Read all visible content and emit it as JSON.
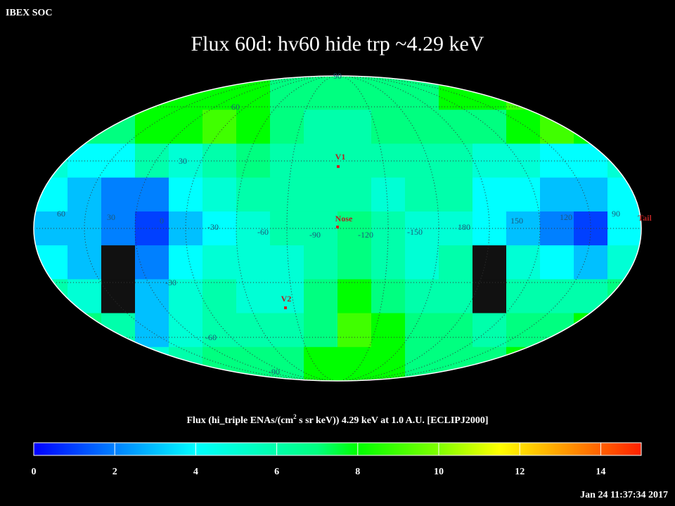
{
  "header": {
    "label": "IBEX SOC",
    "title": "Flux   60d: hv60 hide trp ~4.29 keV",
    "timestamp": "Jan 24 11:37:34 2017"
  },
  "map": {
    "grid_rows": [
      [
        8,
        8,
        8,
        8,
        8,
        8,
        8,
        7,
        7,
        7,
        7,
        7,
        8,
        8,
        9,
        8,
        8,
        8
      ],
      [
        7,
        7,
        7,
        8,
        8,
        9,
        8,
        7,
        6,
        6,
        7,
        7,
        7,
        7,
        8,
        9,
        8,
        7
      ],
      [
        5,
        4,
        4,
        6,
        5,
        6,
        7,
        6,
        6,
        6,
        6,
        6,
        6,
        5,
        5,
        4,
        4,
        5
      ],
      [
        4,
        3,
        2,
        2,
        4,
        5,
        6,
        6,
        6,
        6,
        5,
        6,
        6,
        4,
        4,
        3,
        3,
        4
      ],
      [
        3,
        3,
        2,
        1,
        3,
        4,
        5,
        6,
        6,
        7,
        6,
        5,
        5,
        4,
        3,
        2,
        1,
        4
      ],
      [
        4,
        3,
        null,
        2,
        4,
        5,
        5,
        5,
        6,
        7,
        6,
        5,
        6,
        null,
        5,
        4,
        3,
        5
      ],
      [
        6,
        5,
        null,
        3,
        5,
        6,
        5,
        5,
        7,
        8,
        7,
        6,
        6,
        null,
        6,
        6,
        6,
        7
      ],
      [
        8,
        7,
        6,
        3,
        5,
        6,
        6,
        6,
        7,
        9,
        8,
        7,
        7,
        6,
        7,
        7,
        8,
        8
      ],
      [
        8,
        8,
        7,
        5,
        6,
        7,
        7,
        7,
        8,
        8,
        8,
        7,
        7,
        7,
        8,
        8,
        8,
        8
      ]
    ],
    "longitude_labels": [
      "60",
      "30",
      "0",
      "-30",
      "-60",
      "-90",
      "-120",
      "-150",
      "180",
      "150",
      "120",
      "90"
    ],
    "latitude_labels": [
      "90",
      "60",
      "30",
      "-30",
      "-60",
      "-90"
    ],
    "markers": [
      "V1",
      "Nose",
      "V2",
      "Tail"
    ]
  },
  "colorbar": {
    "title_parts": [
      "Flux (hi_triple ENAs/(cm",
      "2",
      " s sr keV))  4.29 keV at 1.0 A.U. [ECLIPJ2000]"
    ],
    "lim": [
      0,
      15
    ],
    "ticks": [
      0,
      2,
      4,
      6,
      8,
      10,
      12,
      14
    ]
  }
}
